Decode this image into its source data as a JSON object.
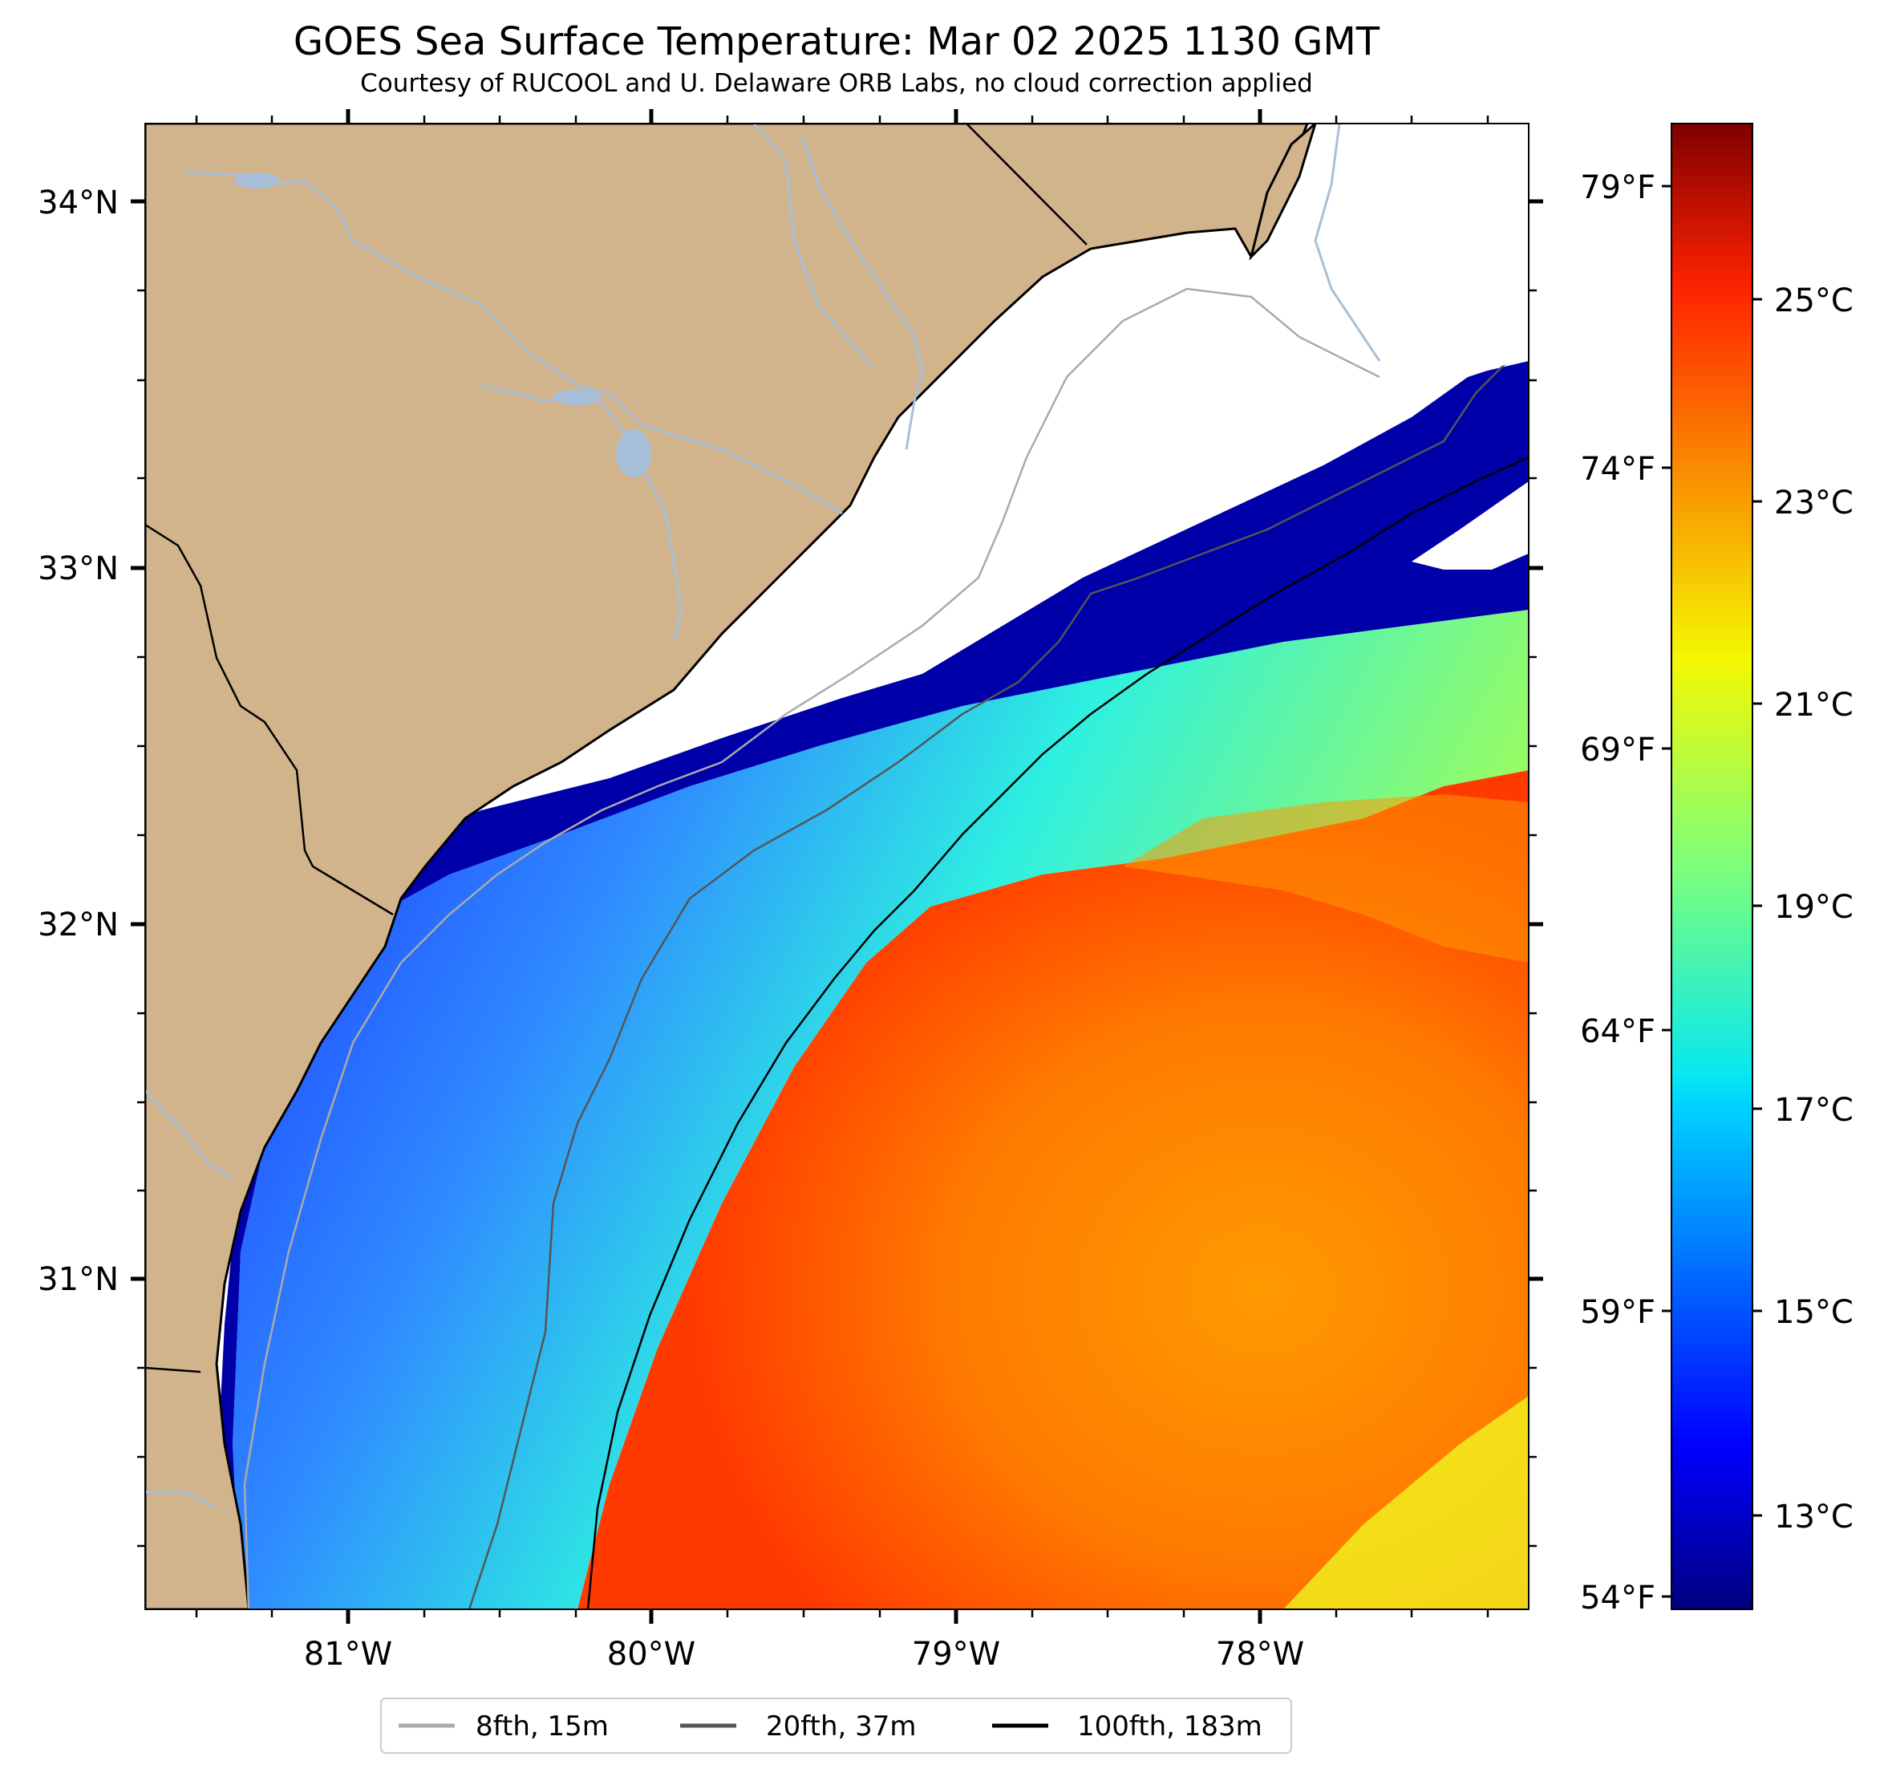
{
  "title": "GOES Sea Surface Temperature: Mar 02 2025 1130 GMT",
  "subtitle": "Courtesy of RUCOOL and U. Delaware ORB Labs, no cloud correction applied",
  "map": {
    "lat_ticks": [
      "34°N",
      "33°N",
      "32°N",
      "31°N"
    ],
    "lon_ticks": [
      "81°W",
      "80°W",
      "79°W",
      "78°W"
    ],
    "extent": {
      "lon_min": -81.67,
      "lon_max": -77.13,
      "lat_min": 30.1,
      "lat_max": 34.22
    },
    "land_color": "#d2b48c",
    "cloud_color": "#ffffff",
    "river_color": "#a7bfd8"
  },
  "fahrenheit_ticks": [
    "79°F",
    "74°F",
    "69°F",
    "64°F",
    "59°F",
    "54°F"
  ],
  "colorbar": {
    "labels": [
      "25°C",
      "23°C",
      "21°C",
      "19°C",
      "17°C",
      "15°C",
      "13°C"
    ],
    "colormap": "jet",
    "range_c": [
      12.2,
      26.9
    ]
  },
  "legend": {
    "items": [
      {
        "label": "8fth, 15m",
        "color": "#aaaaaa"
      },
      {
        "label": "20fth, 37m",
        "color": "#555555"
      },
      {
        "label": "100fth, 183m",
        "color": "#000000"
      }
    ]
  }
}
